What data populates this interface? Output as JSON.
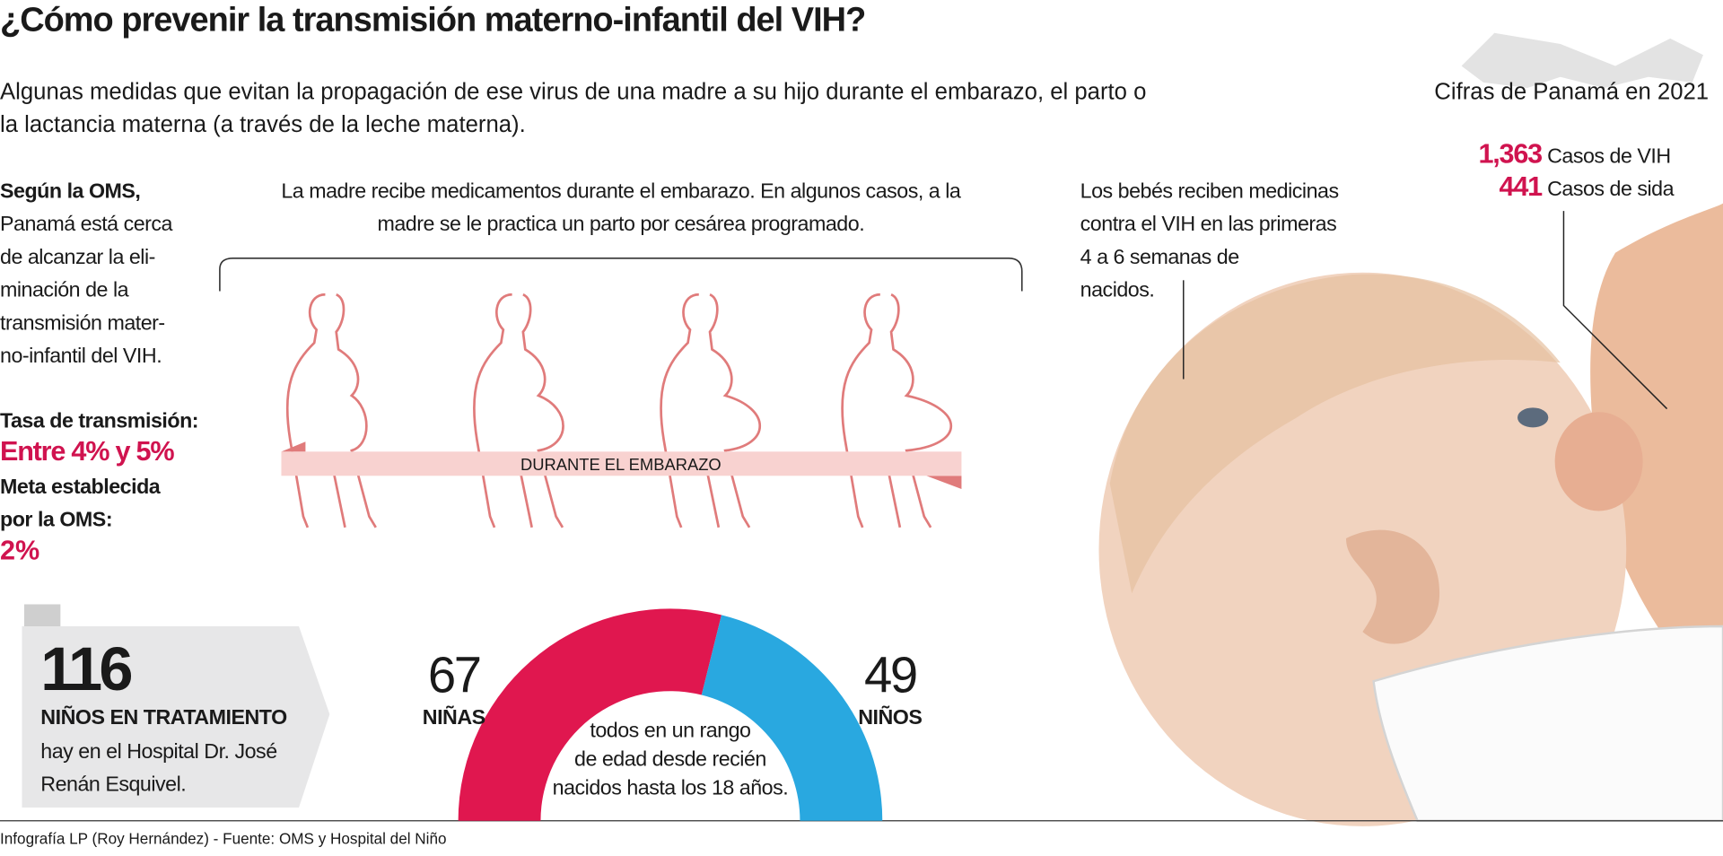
{
  "header": {
    "title": "¿Cómo prevenir la transmisión materno-infantil del VIH?",
    "subtitle": [
      "Algunas medidas que evitan la propagación de ese virus de una madre a su hijo durante el embarazo, el parto o",
      "la lactancia materna (a través de la leche materna)."
    ]
  },
  "stats": {
    "title": "Cifras de Panamá en 2021",
    "items": [
      {
        "value": "1,363",
        "label": "Casos de VIH"
      },
      {
        "value": "441",
        "label": "Casos de sida"
      }
    ]
  },
  "oms": {
    "lead": "Según la OMS,",
    "text": [
      "Panamá está cerca",
      "de alcanzar la eli-",
      "minación de la",
      "transmisión mater-",
      "no-infantil del VIH."
    ],
    "rate_label": "Tasa de transmisión:",
    "rate": "Entre 4% y 5%",
    "goal_label": [
      "Meta establecida",
      "por la OMS:"
    ],
    "goal": "2%"
  },
  "pregnancy": {
    "text": [
      "La madre recibe medicamentos durante el embarazo. En algunos casos, a la",
      "madre se le practica un parto por cesárea programado."
    ],
    "band": "DURANTE EL EMBARAZO"
  },
  "babies": {
    "text": [
      "Los bebés reciben medicinas",
      "contra el VIH en las primeras",
      "4 a 6 semanas de",
      "nacidos."
    ]
  },
  "treatment": {
    "count": 116,
    "label": "NIÑOS EN TRATAMIENTO",
    "text": [
      "hay en el Hospital Dr. José",
      "Renán Esquivel."
    ]
  },
  "donut": {
    "segments": [
      {
        "value": 67,
        "label": "NIÑAS",
        "color": "#e0174f"
      },
      {
        "value": 49,
        "label": "NIÑOS",
        "color": "#29a8e0"
      }
    ],
    "note": [
      "todos en un rango",
      "de edad desde recién",
      "nacidos hasta los 18 años."
    ]
  },
  "footer": "Infografía LP (Roy Hernández) - Fuente: OMS y Hospital del Niño"
}
